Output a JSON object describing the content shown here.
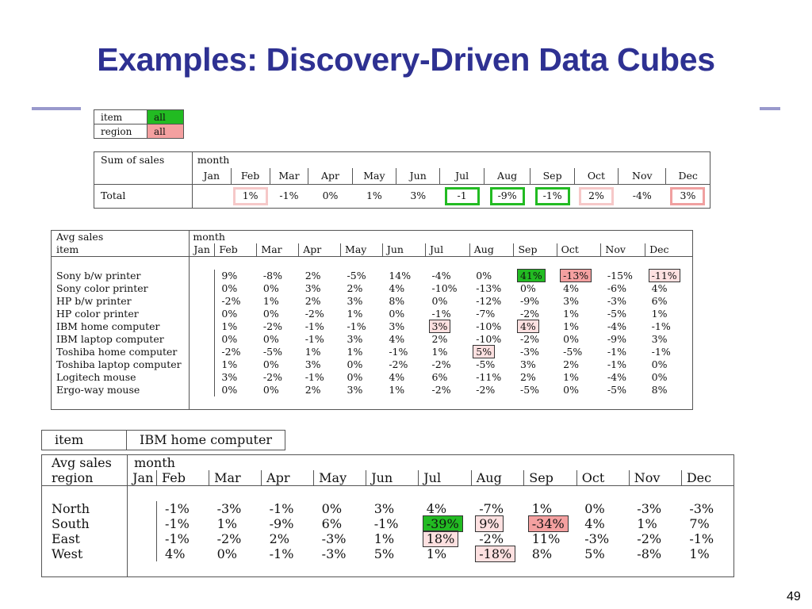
{
  "slide": {
    "title": "Examples: Discovery-Driven Data Cubes",
    "page_number": "49",
    "accent_color": "#2e3192"
  },
  "filter_table": {
    "rows": [
      {
        "key": "item",
        "value": "all",
        "color": "#22bb22"
      },
      {
        "key": "region",
        "value": "all",
        "color": "#f4a0a0"
      }
    ]
  },
  "sum_table": {
    "corner": "Sum of sales",
    "dimension": "month",
    "months": [
      "Jan",
      "Feb",
      "Mar",
      "Apr",
      "May",
      "Jun",
      "Jul",
      "Aug",
      "Sep",
      "Oct",
      "Nov",
      "Dec"
    ],
    "row_label": "Total",
    "values": [
      "",
      "1%",
      "-1%",
      "0%",
      "1%",
      "3%",
      "-1",
      "-9%",
      "-1%",
      "2%",
      "-4%",
      "3%"
    ]
  },
  "item_table": {
    "corner": "Avg sales",
    "row_dim": "item",
    "dimension": "month",
    "months": [
      "Jan",
      "Feb",
      "Mar",
      "Apr",
      "May",
      "Jun",
      "Jul",
      "Aug",
      "Sep",
      "Oct",
      "Nov",
      "Dec"
    ],
    "rows": [
      {
        "label": "Sony b/w printer",
        "values": [
          "",
          "9%",
          "-8%",
          "2%",
          "-5%",
          "14%",
          "-4%",
          "0%",
          "41%",
          "-13%",
          "-15%",
          "-11%"
        ]
      },
      {
        "label": "Sony color printer",
        "values": [
          "",
          "0%",
          "0%",
          "3%",
          "2%",
          "4%",
          "-10%",
          "-13%",
          "0%",
          "4%",
          "-6%",
          "4%"
        ]
      },
      {
        "label": "HP b/w printer",
        "values": [
          "",
          "-2%",
          "1%",
          "2%",
          "3%",
          "8%",
          "0%",
          "-12%",
          "-9%",
          "3%",
          "-3%",
          "6%"
        ]
      },
      {
        "label": "HP color printer",
        "values": [
          "",
          "0%",
          "0%",
          "-2%",
          "1%",
          "0%",
          "-1%",
          "-7%",
          "-2%",
          "1%",
          "-5%",
          "1%"
        ]
      },
      {
        "label": "IBM home computer",
        "values": [
          "",
          "1%",
          "-2%",
          "-1%",
          "-1%",
          "3%",
          "3%",
          "-10%",
          "4%",
          "1%",
          "-4%",
          "-1%"
        ]
      },
      {
        "label": "IBM laptop computer",
        "values": [
          "",
          "0%",
          "0%",
          "-1%",
          "3%",
          "4%",
          "2%",
          "-10%",
          "-2%",
          "0%",
          "-9%",
          "3%"
        ]
      },
      {
        "label": "Toshiba home computer",
        "values": [
          "",
          "-2%",
          "-5%",
          "1%",
          "1%",
          "-1%",
          "1%",
          "5%",
          "-3%",
          "-5%",
          "-1%",
          "-1%"
        ]
      },
      {
        "label": "Toshiba laptop computer",
        "values": [
          "",
          "1%",
          "0%",
          "3%",
          "0%",
          "-2%",
          "-2%",
          "-5%",
          "3%",
          "2%",
          "-1%",
          "0%"
        ]
      },
      {
        "label": "Logitech mouse",
        "values": [
          "",
          "3%",
          "-2%",
          "-1%",
          "0%",
          "4%",
          "6%",
          "-11%",
          "2%",
          "1%",
          "-4%",
          "0%"
        ]
      },
      {
        "label": "Ergo-way mouse",
        "values": [
          "",
          "0%",
          "0%",
          "2%",
          "3%",
          "1%",
          "-2%",
          "-2%",
          "-5%",
          "0%",
          "-5%",
          "8%"
        ]
      }
    ]
  },
  "item_filter": {
    "key": "item",
    "value": "IBM home computer"
  },
  "region_table": {
    "corner": "Avg sales",
    "row_dim": "region",
    "dimension": "month",
    "months": [
      "Jan",
      "Feb",
      "Mar",
      "Apr",
      "May",
      "Jun",
      "Jul",
      "Aug",
      "Sep",
      "Oct",
      "Nov",
      "Dec"
    ],
    "rows": [
      {
        "label": "North",
        "values": [
          "",
          "-1%",
          "-3%",
          "-1%",
          "0%",
          "3%",
          "4%",
          "-7%",
          "1%",
          "0%",
          "-3%",
          "-3%"
        ]
      },
      {
        "label": "South",
        "values": [
          "",
          "-1%",
          "1%",
          "-9%",
          "6%",
          "-1%",
          "-39%",
          "9%",
          "-34%",
          "4%",
          "1%",
          "7%"
        ]
      },
      {
        "label": "East",
        "values": [
          "",
          "-1%",
          "-2%",
          "2%",
          "-3%",
          "1%",
          "18%",
          "-2%",
          "11%",
          "-3%",
          "-2%",
          "-1%"
        ]
      },
      {
        "label": "West",
        "values": [
          "",
          "4%",
          "0%",
          "-1%",
          "-3%",
          "5%",
          "1%",
          "-18%",
          "8%",
          "5%",
          "-8%",
          "1%"
        ]
      }
    ]
  }
}
